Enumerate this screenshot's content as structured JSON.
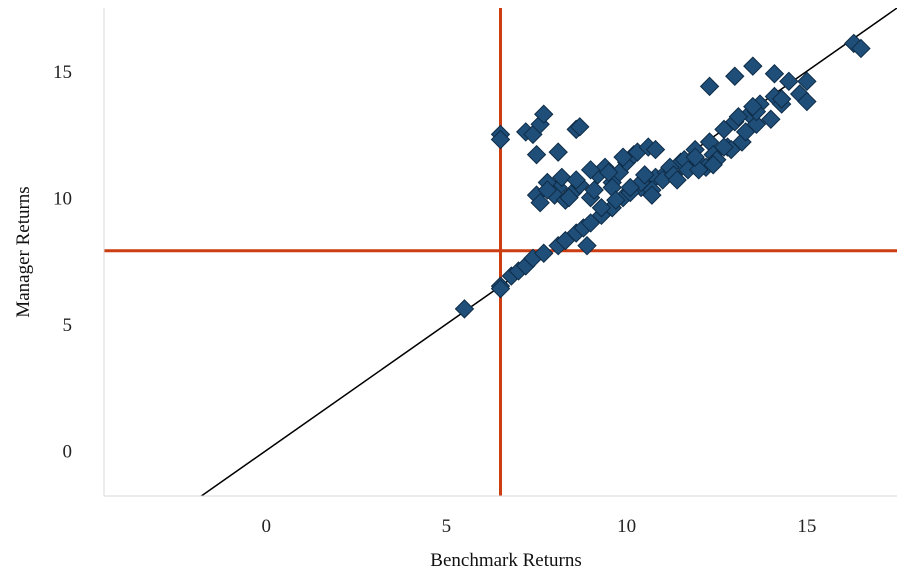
{
  "chart_data": {
    "type": "scatter",
    "title": "",
    "xlabel": "Benchmark Returns",
    "ylabel": "Manager Returns",
    "xlim": [
      -4.5,
      17.5
    ],
    "ylim": [
      -1.8,
      17.5
    ],
    "x_ticks": [
      "0",
      "5",
      "10",
      "15"
    ],
    "y_ticks": [
      "0",
      "5",
      "10",
      "15"
    ],
    "grid": false,
    "legend": "none",
    "reference_lines": {
      "benchmark_vertical": 6.5,
      "manager_horizontal": 7.9,
      "identity_line": "y = x"
    },
    "colors": {
      "points": "#1f4e79",
      "point_edge": "#0e2c47",
      "reference": "#cc3d12",
      "identity": "#000000"
    },
    "series": [
      {
        "x": [
          5.5,
          6.5,
          6.5,
          6.8,
          7.0,
          7.2,
          7.4,
          7.7,
          8.1,
          8.3,
          8.6,
          8.8,
          9.0,
          9.3,
          9.6,
          9.9,
          10.4,
          10.8,
          11.1,
          11.5,
          11.9,
          12.3,
          12.7,
          13.0,
          13.4,
          13.7,
          14.1,
          14.5,
          15.0,
          16.3,
          16.5,
          6.5,
          6.5,
          7.2,
          7.4,
          7.5,
          7.6,
          7.7,
          8.1,
          8.6,
          8.7,
          7.5,
          8.1,
          7.6,
          7.8,
          8.0,
          8.3,
          8.5,
          8.7,
          9.0,
          9.2,
          9.4,
          9.6,
          9.8,
          10.0,
          10.2,
          7.8,
          8.2,
          8.6,
          9.0,
          9.5,
          9.9,
          10.3,
          10.6,
          10.8,
          11.2,
          11.6,
          8.4,
          9.1,
          9.6,
          10.1,
          10.4,
          10.7,
          11.0,
          11.3,
          11.7,
          12.0,
          12.4,
          12.8,
          13.2,
          13.6,
          14.0,
          14.3,
          14.8,
          12.2,
          12.5,
          12.9,
          13.3,
          13.6,
          12.3,
          13.0,
          13.5,
          14.1,
          15.0,
          8.9,
          9.3,
          9.7,
          10.1,
          10.5,
          12.0,
          12.7,
          13.1,
          13.5,
          14.3,
          11.9,
          12.4,
          10.7,
          11.4
        ],
        "y": [
          5.6,
          6.5,
          6.4,
          6.9,
          7.1,
          7.3,
          7.6,
          7.8,
          8.1,
          8.3,
          8.6,
          8.8,
          9.0,
          9.3,
          9.6,
          10.0,
          10.4,
          10.8,
          11.0,
          11.4,
          11.9,
          12.2,
          12.7,
          13.0,
          13.3,
          13.7,
          14.0,
          14.6,
          14.6,
          16.1,
          15.9,
          12.5,
          12.3,
          12.6,
          12.5,
          11.7,
          12.9,
          13.3,
          11.8,
          12.7,
          12.8,
          10.1,
          10.4,
          9.8,
          10.6,
          10.1,
          9.9,
          10.2,
          10.5,
          10.0,
          10.9,
          11.2,
          10.6,
          11.0,
          11.4,
          11.7,
          10.3,
          10.8,
          10.7,
          11.1,
          11.0,
          11.6,
          11.8,
          12.0,
          11.9,
          11.2,
          11.5,
          10.0,
          10.3,
          10.4,
          10.2,
          10.6,
          10.3,
          10.7,
          10.9,
          11.1,
          11.4,
          11.7,
          12.0,
          12.2,
          12.9,
          13.1,
          13.7,
          14.1,
          11.2,
          11.5,
          11.9,
          12.6,
          13.4,
          14.4,
          14.8,
          15.2,
          14.9,
          13.8,
          8.1,
          9.6,
          9.9,
          10.4,
          10.9,
          11.1,
          12.0,
          13.2,
          13.6,
          13.9,
          11.6,
          11.3,
          10.1,
          10.7
        ]
      }
    ]
  }
}
